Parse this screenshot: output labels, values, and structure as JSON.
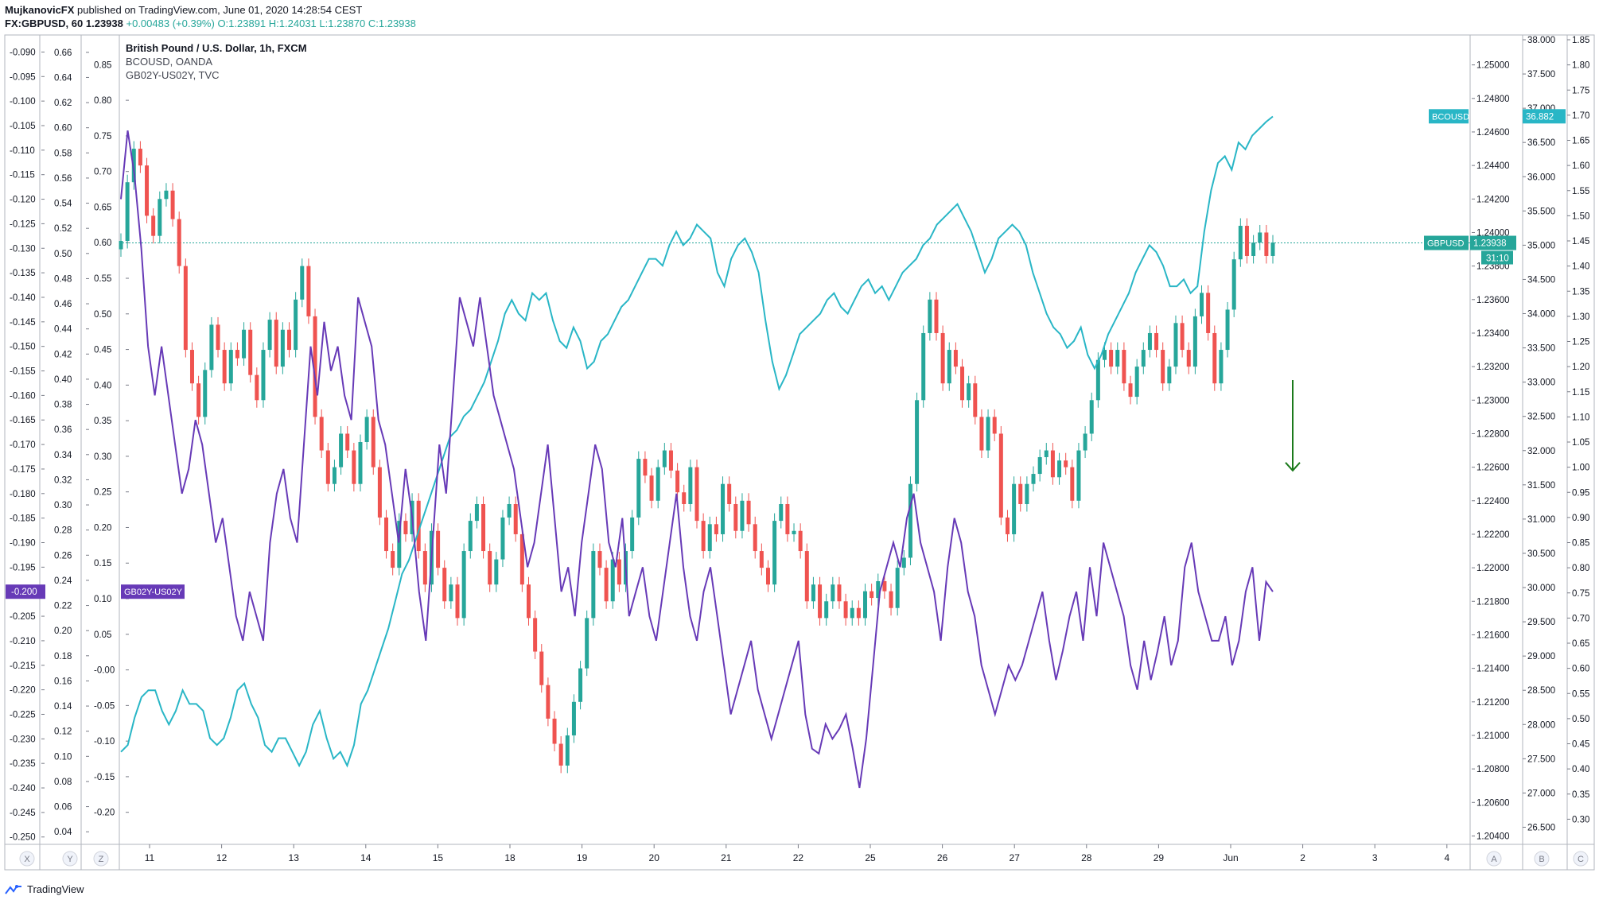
{
  "header": {
    "author": "MujkanovicFX",
    "published": "published on TradingView.com, June 01, 2020 14:28:54 CEST",
    "symbol": "FX:GBPUSD, 60",
    "last": "1.23938",
    "change": "+0.00483 (+0.39%)",
    "o": "O:1.23891",
    "h": "H:1.24031",
    "l": "L:1.23870",
    "c": "C:1.23938"
  },
  "legend": {
    "main": "British Pound / U.S. Dollar, 1h, FXCM",
    "s2": "BCOUSD, OANDA",
    "s3": "GB02Y-US02Y, TVC"
  },
  "footer": {
    "brand": "TradingView"
  },
  "colors": {
    "up": "#26a69a",
    "down": "#ef5350",
    "bcousd": "#29b6c6",
    "spread": "#673ab7",
    "arrow": "#1b7a1b"
  },
  "chart_data": {
    "type": "line",
    "x_ticks": [
      "11",
      "12",
      "13",
      "14",
      "15",
      "18",
      "19",
      "20",
      "21",
      "22",
      "25",
      "26",
      "27",
      "28",
      "29",
      "Jun",
      "2",
      "3",
      "4"
    ],
    "axis_letters": {
      "left": [
        "X",
        "Y",
        "Z"
      ],
      "right": [
        "A",
        "B",
        "C"
      ]
    },
    "axes": {
      "gbpusd": {
        "ticks": [
          "1.25000",
          "1.24800",
          "1.24600",
          "1.24400",
          "1.24200",
          "1.24000",
          "1.23800",
          "1.23600",
          "1.23400",
          "1.23200",
          "1.23000",
          "1.22800",
          "1.22600",
          "1.22400",
          "1.22200",
          "1.22000",
          "1.21800",
          "1.21600",
          "1.21400",
          "1.21200",
          "1.21000",
          "1.20800",
          "1.20600",
          "1.20400"
        ],
        "range": [
          1.2035,
          1.2515
        ]
      },
      "bcousd": {
        "ticks": [
          "38.000",
          "37.500",
          "37.000",
          "36.500",
          "36.000",
          "35.500",
          "35.000",
          "34.500",
          "34.000",
          "33.500",
          "33.000",
          "32.500",
          "32.000",
          "31.500",
          "31.000",
          "30.500",
          "30.000",
          "29.500",
          "29.000",
          "28.500",
          "28.000",
          "27.500",
          "27.000",
          "26.500"
        ],
        "range": [
          26.25,
          38.0
        ]
      },
      "spread_a": {
        "ticks": [
          "-0.090",
          "-0.095",
          "-0.100",
          "-0.105",
          "-0.110",
          "-0.115",
          "-0.120",
          "-0.125",
          "-0.130",
          "-0.135",
          "-0.140",
          "-0.145",
          "-0.150",
          "-0.155",
          "-0.160",
          "-0.165",
          "-0.170",
          "-0.175",
          "-0.180",
          "-0.185",
          "-0.190",
          "-0.195",
          "-0.200",
          "-0.205",
          "-0.210",
          "-0.215",
          "-0.220",
          "-0.225",
          "-0.230",
          "-0.235",
          "-0.240",
          "-0.245",
          "-0.250"
        ],
        "range": [
          -0.2515,
          -0.0875
        ]
      },
      "z": {
        "ticks": [
          "0.66",
          "0.64",
          "0.62",
          "0.60",
          "0.58",
          "0.56",
          "0.54",
          "0.52",
          "0.50",
          "0.48",
          "0.46",
          "0.44",
          "0.42",
          "0.40",
          "0.38",
          "0.36",
          "0.34",
          "0.32",
          "0.30",
          "0.28",
          "0.26",
          "0.24",
          "0.22",
          "0.20",
          "0.18",
          "0.16",
          "0.14",
          "0.12",
          "0.10",
          "0.08",
          "0.06",
          "0.04"
        ],
        "range": [
          0.03,
          0.67
        ]
      },
      "y": {
        "ticks": [
          "0.85",
          "0.80",
          "0.75",
          "0.70",
          "0.65",
          "0.60",
          "0.55",
          "0.50",
          "0.45",
          "0.40",
          "0.35",
          "0.30",
          "0.25",
          "0.20",
          "0.15",
          "0.10",
          "0.05",
          "-0.00",
          "-0.05",
          "-0.10",
          "-0.15",
          "-0.20"
        ],
        "range": [
          -0.245,
          0.885
        ]
      },
      "c": {
        "ticks": [
          "1.85",
          "1.80",
          "1.75",
          "1.70",
          "1.65",
          "1.60",
          "1.55",
          "1.50",
          "1.45",
          "1.40",
          "1.35",
          "1.30",
          "1.25",
          "1.20",
          "1.15",
          "1.10",
          "1.05",
          "1.00",
          "0.95",
          "0.90",
          "0.85",
          "0.80",
          "0.75",
          "0.70",
          "0.65",
          "0.60",
          "0.55",
          "0.50",
          "0.45",
          "0.40",
          "0.35",
          "0.30"
        ],
        "range": [
          0.25,
          1.85
        ]
      }
    },
    "tags": {
      "bcousd_name": "BCOUSD",
      "bcousd_value": "36.882",
      "gbpusd_name": "GBPUSD",
      "gbpusd_value": "1.23938",
      "countdown": "31:10",
      "spread_name": "GB02Y-US02Y",
      "spread_value": "-0.200"
    },
    "series": [
      {
        "name": "GBPUSD",
        "axis": "gbpusd",
        "style": "candles",
        "close": [
          1.2395,
          1.243,
          1.245,
          1.244,
          1.241,
          1.2398,
          1.242,
          1.2425,
          1.2408,
          1.238,
          1.233,
          1.231,
          1.229,
          1.2318,
          1.2345,
          1.233,
          1.231,
          1.233,
          1.2325,
          1.2342,
          1.2315,
          1.23,
          1.233,
          1.2348,
          1.232,
          1.2342,
          1.233,
          1.236,
          1.238,
          1.235,
          1.229,
          1.227,
          1.225,
          1.226,
          1.228,
          1.227,
          1.225,
          1.2275,
          1.229,
          1.226,
          1.223,
          1.221,
          1.22,
          1.2228,
          1.222,
          1.224,
          1.221,
          1.219,
          1.2222,
          1.22,
          1.218,
          1.219,
          1.217,
          1.221,
          1.2228,
          1.2238,
          1.221,
          1.219,
          1.2205,
          1.223,
          1.2238,
          1.222,
          1.219,
          1.217,
          1.215,
          1.213,
          1.211,
          1.2095,
          1.2082,
          1.21,
          1.212,
          1.214,
          1.217,
          1.221,
          1.22,
          1.218,
          1.2205,
          1.219,
          1.221,
          1.223,
          1.2265,
          1.2255,
          1.224,
          1.226,
          1.227,
          1.2258,
          1.2245,
          1.2238,
          1.226,
          1.2228,
          1.221,
          1.2226,
          1.222,
          1.225,
          1.2238,
          1.2222,
          1.224,
          1.2226,
          1.221,
          1.22,
          1.219,
          1.2228,
          1.2238,
          1.222,
          1.2222,
          1.221,
          1.218,
          1.219,
          1.217,
          1.218,
          1.219,
          1.218,
          1.217,
          1.2176,
          1.217,
          1.2186,
          1.2182,
          1.2192,
          1.2186,
          1.2176,
          1.22,
          1.2206,
          1.225,
          1.23,
          1.234,
          1.236,
          1.234,
          1.231,
          1.233,
          1.232,
          1.23,
          1.231,
          1.229,
          1.227,
          1.229,
          1.228,
          1.223,
          1.222,
          1.225,
          1.2238,
          1.225,
          1.2256,
          1.2266,
          1.227,
          1.2254,
          1.2264,
          1.226,
          1.224,
          1.227,
          1.228,
          1.23,
          1.2324,
          1.233,
          1.232,
          1.233,
          1.231,
          1.2302,
          1.232,
          1.233,
          1.234,
          1.233,
          1.231,
          1.232,
          1.2346,
          1.233,
          1.232,
          1.235,
          1.2364,
          1.234,
          1.231,
          1.233,
          1.2354,
          1.2384,
          1.2404,
          1.2386,
          1.2394,
          1.24,
          1.2386,
          1.2394
        ]
      },
      {
        "name": "BCOUSD",
        "axis": "bcousd",
        "style": "line",
        "values": [
          27.6,
          27.7,
          28.1,
          28.4,
          28.5,
          28.5,
          28.2,
          28.0,
          28.2,
          28.5,
          28.3,
          28.3,
          28.2,
          27.8,
          27.7,
          27.8,
          28.1,
          28.5,
          28.6,
          28.3,
          28.1,
          27.7,
          27.6,
          27.8,
          27.8,
          27.6,
          27.4,
          27.6,
          28.0,
          28.2,
          27.8,
          27.5,
          27.6,
          27.4,
          27.7,
          28.3,
          28.5,
          28.8,
          29.1,
          29.4,
          29.8,
          30.2,
          30.4,
          30.7,
          31.0,
          31.3,
          31.6,
          31.9,
          32.2,
          32.3,
          32.5,
          32.6,
          32.8,
          33.0,
          33.3,
          33.6,
          34.0,
          34.2,
          34.0,
          33.9,
          34.3,
          34.2,
          34.3,
          33.9,
          33.6,
          33.5,
          33.8,
          33.6,
          33.2,
          33.3,
          33.6,
          33.7,
          33.9,
          34.1,
          34.2,
          34.4,
          34.6,
          34.8,
          34.8,
          34.7,
          35.0,
          35.2,
          35.0,
          35.1,
          35.3,
          35.2,
          35.1,
          34.6,
          34.4,
          34.8,
          35.0,
          35.1,
          34.9,
          34.6,
          33.9,
          33.3,
          32.9,
          33.1,
          33.4,
          33.7,
          33.8,
          33.9,
          34.0,
          34.2,
          34.3,
          34.1,
          34.0,
          34.2,
          34.4,
          34.5,
          34.3,
          34.4,
          34.2,
          34.4,
          34.6,
          34.7,
          34.8,
          35.0,
          35.1,
          35.3,
          35.4,
          35.5,
          35.6,
          35.4,
          35.2,
          34.9,
          34.6,
          34.8,
          35.1,
          35.2,
          35.3,
          35.2,
          35.0,
          34.6,
          34.3,
          34.0,
          33.8,
          33.7,
          33.5,
          33.6,
          33.8,
          33.4,
          33.2,
          33.4,
          33.7,
          33.9,
          34.1,
          34.3,
          34.6,
          34.8,
          35.0,
          34.9,
          34.7,
          34.4,
          34.4,
          34.5,
          34.3,
          34.4,
          35.2,
          35.8,
          36.2,
          36.3,
          36.1,
          36.5,
          36.4,
          36.6,
          36.7,
          36.8,
          36.88
        ]
      },
      {
        "name": "GB02Y-US02Y",
        "axis": "spread_a",
        "style": "line",
        "values": [
          -0.12,
          -0.106,
          -0.115,
          -0.13,
          -0.15,
          -0.16,
          -0.15,
          -0.16,
          -0.17,
          -0.18,
          -0.175,
          -0.165,
          -0.17,
          -0.18,
          -0.19,
          -0.185,
          -0.195,
          -0.205,
          -0.21,
          -0.2,
          -0.205,
          -0.21,
          -0.19,
          -0.18,
          -0.175,
          -0.185,
          -0.19,
          -0.17,
          -0.15,
          -0.16,
          -0.145,
          -0.155,
          -0.15,
          -0.16,
          -0.165,
          -0.14,
          -0.145,
          -0.15,
          -0.165,
          -0.17,
          -0.18,
          -0.19,
          -0.175,
          -0.185,
          -0.2,
          -0.21,
          -0.19,
          -0.17,
          -0.18,
          -0.16,
          -0.14,
          -0.145,
          -0.15,
          -0.14,
          -0.15,
          -0.16,
          -0.165,
          -0.17,
          -0.175,
          -0.185,
          -0.195,
          -0.19,
          -0.18,
          -0.17,
          -0.185,
          -0.2,
          -0.195,
          -0.205,
          -0.19,
          -0.18,
          -0.17,
          -0.175,
          -0.19,
          -0.195,
          -0.185,
          -0.205,
          -0.2,
          -0.195,
          -0.205,
          -0.21,
          -0.2,
          -0.19,
          -0.18,
          -0.195,
          -0.205,
          -0.21,
          -0.2,
          -0.195,
          -0.205,
          -0.215,
          -0.225,
          -0.22,
          -0.215,
          -0.21,
          -0.22,
          -0.225,
          -0.23,
          -0.225,
          -0.22,
          -0.215,
          -0.21,
          -0.225,
          -0.232,
          -0.233,
          -0.227,
          -0.23,
          -0.228,
          -0.225,
          -0.232,
          -0.24,
          -0.23,
          -0.215,
          -0.2,
          -0.195,
          -0.19,
          -0.195,
          -0.185,
          -0.18,
          -0.19,
          -0.195,
          -0.2,
          -0.21,
          -0.195,
          -0.185,
          -0.19,
          -0.2,
          -0.205,
          -0.215,
          -0.22,
          -0.225,
          -0.22,
          -0.215,
          -0.218,
          -0.215,
          -0.21,
          -0.205,
          -0.2,
          -0.21,
          -0.218,
          -0.212,
          -0.205,
          -0.2,
          -0.21,
          -0.195,
          -0.205,
          -0.19,
          -0.195,
          -0.2,
          -0.205,
          -0.215,
          -0.22,
          -0.21,
          -0.218,
          -0.212,
          -0.205,
          -0.215,
          -0.21,
          -0.195,
          -0.19,
          -0.2,
          -0.205,
          -0.21,
          -0.21,
          -0.205,
          -0.215,
          -0.21,
          -0.2,
          -0.195,
          -0.21,
          -0.198,
          -0.2
        ]
      }
    ],
    "reference_line": {
      "value": 1.23938,
      "axis": "gbpusd"
    },
    "annotations": [
      {
        "type": "arrow",
        "direction": "down",
        "x_day": 16.95,
        "from": 1.2312,
        "to": 1.2258,
        "axis": "gbpusd"
      }
    ]
  }
}
